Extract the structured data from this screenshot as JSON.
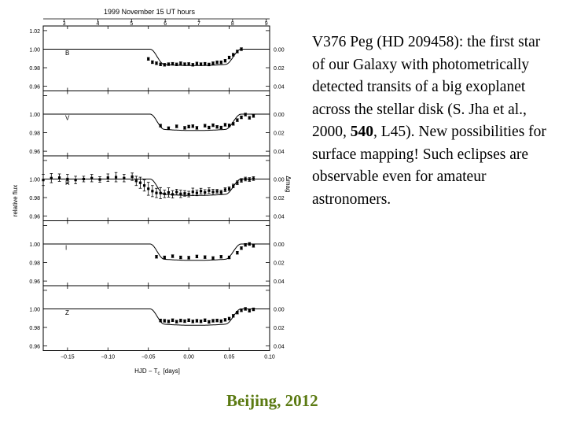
{
  "caption": {
    "part1": "V376 Peg (HD 209458): the first star of our Galaxy with photometrically detected transits of a big exoplanet across the stellar disk (S. Jha et al., 2000, ",
    "bold": "540",
    "part2": ", L45). New possibilities for surface mapping! Such eclipses are observable even for amateur astronomers."
  },
  "footer": "Beijing, 2012",
  "colors": {
    "footer": "#5b7a12",
    "ink": "#000000"
  },
  "chart_data": {
    "type": "scatter",
    "title": "1999 November 15 UT hours",
    "xlabel": "HJD − T",
    "xlabel_sub": "c",
    "xlabel_unit": "[days]",
    "ylabel": "relative flux",
    "ylabel_right": "Δmag",
    "xlim": [
      -0.18,
      0.1
    ],
    "top_ticks": [
      "3",
      "4",
      "5",
      "6",
      "7",
      "8",
      "9"
    ],
    "top_tick_hours": [
      3,
      4,
      5,
      6,
      7,
      8,
      9
    ],
    "x_ticks": [
      "−0.15",
      "−0.10",
      "−0.05",
      "0.00",
      "0.05",
      "0.10"
    ],
    "x_tick_values": [
      -0.15,
      -0.1,
      -0.05,
      0.0,
      0.05,
      0.1
    ],
    "y_left_ticks": [
      "1.02",
      "1.00",
      "0.98",
      "0.96"
    ],
    "y_right_ticks": [
      "0.00",
      "0.02",
      "0.04"
    ],
    "panels": [
      {
        "band": "B",
        "x": [
          -0.05,
          -0.045,
          -0.04,
          -0.035,
          -0.03,
          -0.025,
          -0.02,
          -0.015,
          -0.01,
          -0.005,
          0.0,
          0.005,
          0.01,
          0.015,
          0.02,
          0.025,
          0.03,
          0.035,
          0.04,
          0.045,
          0.05,
          0.055,
          0.06,
          0.065
        ],
        "y": [
          0.9895,
          0.986,
          0.9848,
          0.9836,
          0.9832,
          0.9838,
          0.9842,
          0.9836,
          0.9848,
          0.9838,
          0.984,
          0.9832,
          0.9845,
          0.9838,
          0.9842,
          0.9835,
          0.9848,
          0.9858,
          0.9858,
          0.9875,
          0.991,
          0.994,
          0.9975,
          1.0
        ]
      },
      {
        "band": "V",
        "x": [
          -0.035,
          -0.025,
          -0.015,
          -0.005,
          0.0,
          0.005,
          0.01,
          0.02,
          0.025,
          0.03,
          0.035,
          0.04,
          0.045,
          0.05,
          0.055,
          0.06,
          0.065,
          0.07,
          0.075,
          0.08
        ],
        "y": [
          0.9875,
          0.9848,
          0.9868,
          0.9852,
          0.9865,
          0.987,
          0.9852,
          0.9875,
          0.9855,
          0.988,
          0.9862,
          0.9855,
          0.9885,
          0.9878,
          0.9895,
          0.9935,
          0.9965,
          0.9995,
          0.996,
          0.998
        ]
      },
      {
        "band": "R",
        "x": [
          -0.18,
          -0.17,
          -0.16,
          -0.15,
          -0.14,
          -0.13,
          -0.12,
          -0.11,
          -0.1,
          -0.09,
          -0.08,
          -0.07,
          -0.065,
          -0.06,
          -0.055,
          -0.05,
          -0.045,
          -0.04,
          -0.035,
          -0.03,
          -0.025,
          -0.02,
          -0.015,
          -0.01,
          -0.005,
          0.0,
          0.005,
          0.01,
          0.015,
          0.02,
          0.025,
          0.03,
          0.035,
          0.04,
          0.045,
          0.05,
          0.055,
          0.06,
          0.065,
          0.07,
          0.075,
          0.08
        ],
        "y": [
          0.999,
          1.001,
          1.0015,
          1.0,
          0.999,
          1.0,
          1.001,
          0.9995,
          1.0015,
          1.002,
          1.001,
          1.0025,
          0.998,
          0.996,
          0.993,
          0.9895,
          0.987,
          0.985,
          0.9848,
          0.984,
          0.9855,
          0.9835,
          0.986,
          0.984,
          0.9845,
          0.9838,
          0.9862,
          0.985,
          0.987,
          0.9855,
          0.9875,
          0.986,
          0.9868,
          0.9858,
          0.9885,
          0.9895,
          0.9925,
          0.996,
          0.9985,
          1.0,
          0.9995,
          1.0005
        ],
        "err": [
          0.006,
          0.005,
          0.004,
          0.005,
          0.004,
          0.003,
          0.004,
          0.003,
          0.004,
          0.005,
          0.004,
          0.004,
          0.005,
          0.006,
          0.006,
          0.007,
          0.006,
          0.005,
          0.006,
          0.004,
          0.005,
          0.004,
          0.003,
          0.004,
          0.003,
          0.003,
          0.004,
          0.003,
          0.003,
          0.003,
          0.003,
          0.003,
          0.002,
          0.002,
          0.002,
          0.002,
          0.002,
          0.002,
          0.002,
          0.002,
          0.002,
          0.002
        ]
      },
      {
        "band": "I",
        "x": [
          -0.04,
          -0.03,
          -0.02,
          -0.01,
          0.0,
          0.01,
          0.02,
          0.03,
          0.04,
          0.05,
          0.06,
          0.065,
          0.07,
          0.075,
          0.08
        ],
        "y": [
          0.9862,
          0.9855,
          0.9868,
          0.9855,
          0.9852,
          0.9865,
          0.9858,
          0.9848,
          0.9862,
          0.9855,
          0.9905,
          0.9955,
          0.999,
          1.0,
          0.998
        ]
      },
      {
        "band": "Z",
        "x": [
          -0.035,
          -0.03,
          -0.025,
          -0.02,
          -0.015,
          -0.01,
          -0.005,
          0.0,
          0.005,
          0.01,
          0.015,
          0.02,
          0.025,
          0.03,
          0.035,
          0.04,
          0.045,
          0.05,
          0.055,
          0.06,
          0.065,
          0.07,
          0.075,
          0.08
        ],
        "y": [
          0.9875,
          0.9872,
          0.9865,
          0.9878,
          0.9862,
          0.9875,
          0.9868,
          0.9878,
          0.9865,
          0.9872,
          0.9866,
          0.9878,
          0.986,
          0.9872,
          0.9875,
          0.9868,
          0.9882,
          0.9895,
          0.9925,
          0.996,
          0.9985,
          1.0,
          0.998,
          0.9995
        ]
      }
    ]
  }
}
